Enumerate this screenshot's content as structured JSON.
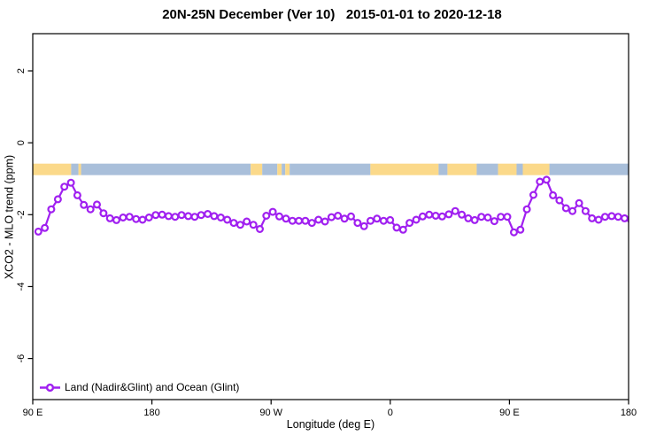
{
  "title": "20N-25N December (Ver 10)   2015-01-01 to 2020-12-18",
  "legend": {
    "label": "Land (Nadir&Glint) and Ocean (Glint)",
    "position": "bottom-left-inside"
  },
  "colors": {
    "series_line": "#A020F0",
    "marker_fill": "#FFFFFF",
    "land_band": "#FBD98A",
    "ocean_band": "#A9BFDA",
    "axis": "#000000",
    "background": "#FFFFFF"
  },
  "chart_data": {
    "type": "line",
    "title": "20N-25N December (Ver 10)   2015-01-01 to 2020-12-18",
    "xlabel": "Longitude (deg E)",
    "ylabel": "XCO2 - MLO trend (ppm)",
    "xlim": [
      90,
      540
    ],
    "ylim": [
      -7.1,
      3.0
    ],
    "grid": false,
    "x_ticks": [
      {
        "value": 90,
        "label": "90 E"
      },
      {
        "value": 180,
        "label": "180"
      },
      {
        "value": 270,
        "label": "90 W"
      },
      {
        "value": 360,
        "label": "0"
      },
      {
        "value": 450,
        "label": "90 E"
      },
      {
        "value": 540,
        "label": "180"
      }
    ],
    "y_ticks": [
      {
        "value": 2,
        "label": "2"
      },
      {
        "value": 0,
        "label": "0"
      },
      {
        "value": -2,
        "label": "-2"
      },
      {
        "value": -4,
        "label": "-4"
      },
      {
        "value": -6,
        "label": "-6"
      }
    ],
    "series": [
      {
        "name": "Land (Nadir&Glint) and Ocean (Glint)",
        "marker": "open-circle",
        "x": [
          94.2,
          99.1,
          104.0,
          109.0,
          113.9,
          118.8,
          123.7,
          128.6,
          133.6,
          138.5,
          143.4,
          148.3,
          153.2,
          158.2,
          163.1,
          168.0,
          172.9,
          177.8,
          182.8,
          187.7,
          192.6,
          197.5,
          202.4,
          207.4,
          212.3,
          217.2,
          222.1,
          227.0,
          232.0,
          236.9,
          241.8,
          246.7,
          251.6,
          256.6,
          261.5,
          266.4,
          271.3,
          276.2,
          281.2,
          286.1,
          291.0,
          295.9,
          300.8,
          305.8,
          310.7,
          315.6,
          320.5,
          325.4,
          330.4,
          335.3,
          340.2,
          345.1,
          350.0,
          355.0,
          359.9,
          364.8,
          369.7,
          374.6,
          379.6,
          384.5,
          389.4,
          394.3,
          399.2,
          404.2,
          409.1,
          414.0,
          418.9,
          423.8,
          428.8,
          433.7,
          438.6,
          443.5,
          448.4,
          453.4,
          458.3,
          463.2,
          468.1,
          473.0,
          478.0,
          482.9,
          487.8,
          492.7,
          497.6,
          502.6,
          507.5,
          512.4,
          517.3,
          522.2,
          527.2,
          532.1,
          537.0,
          541.9
        ],
        "y": [
          -2.47,
          -2.37,
          -1.85,
          -1.57,
          -1.22,
          -1.11,
          -1.46,
          -1.73,
          -1.85,
          -1.72,
          -1.96,
          -2.1,
          -2.15,
          -2.08,
          -2.06,
          -2.12,
          -2.14,
          -2.08,
          -2.01,
          -2.0,
          -2.04,
          -2.06,
          -2.01,
          -2.04,
          -2.06,
          -2.01,
          -1.98,
          -2.04,
          -2.08,
          -2.14,
          -2.23,
          -2.28,
          -2.19,
          -2.28,
          -2.4,
          -2.03,
          -1.92,
          -2.05,
          -2.11,
          -2.17,
          -2.17,
          -2.17,
          -2.23,
          -2.14,
          -2.19,
          -2.07,
          -2.03,
          -2.11,
          -2.05,
          -2.23,
          -2.32,
          -2.17,
          -2.11,
          -2.17,
          -2.15,
          -2.36,
          -2.42,
          -2.23,
          -2.14,
          -2.05,
          -2.0,
          -2.03,
          -2.05,
          -1.99,
          -1.9,
          -2.0,
          -2.1,
          -2.15,
          -2.06,
          -2.08,
          -2.18,
          -2.06,
          -2.06,
          -2.49,
          -2.42,
          -1.85,
          -1.45,
          -1.08,
          -1.03,
          -1.46,
          -1.6,
          -1.82,
          -1.9,
          -1.68,
          -1.9,
          -2.1,
          -2.14,
          -2.06,
          -2.04,
          -2.06,
          -2.1,
          -2.15
        ]
      }
    ],
    "map_band": {
      "description": "land/ocean strip for 20N-25N latitude band",
      "value_top": -0.58,
      "value_bottom": -0.9,
      "segments": [
        {
          "from": 90,
          "to": 119,
          "type": "land"
        },
        {
          "from": 119,
          "to": 124.5,
          "type": "ocean"
        },
        {
          "from": 124.5,
          "to": 126.5,
          "type": "land"
        },
        {
          "from": 126.5,
          "to": 254.6,
          "type": "ocean"
        },
        {
          "from": 254.6,
          "to": 263.3,
          "type": "land"
        },
        {
          "from": 263.3,
          "to": 274.7,
          "type": "ocean"
        },
        {
          "from": 274.7,
          "to": 278.0,
          "type": "land"
        },
        {
          "from": 278.0,
          "to": 280.7,
          "type": "ocean"
        },
        {
          "from": 280.7,
          "to": 284.0,
          "type": "land"
        },
        {
          "from": 284.0,
          "to": 345.0,
          "type": "ocean"
        },
        {
          "from": 345.0,
          "to": 396.5,
          "type": "land"
        },
        {
          "from": 396.5,
          "to": 403.2,
          "type": "ocean"
        },
        {
          "from": 403.2,
          "to": 425.3,
          "type": "land"
        },
        {
          "from": 425.3,
          "to": 441.4,
          "type": "ocean"
        },
        {
          "from": 441.4,
          "to": 455.4,
          "type": "land"
        },
        {
          "from": 455.4,
          "to": 460.1,
          "type": "ocean"
        },
        {
          "from": 460.1,
          "to": 480.2,
          "type": "land"
        },
        {
          "from": 480.2,
          "to": 540.0,
          "type": "ocean"
        }
      ]
    }
  }
}
